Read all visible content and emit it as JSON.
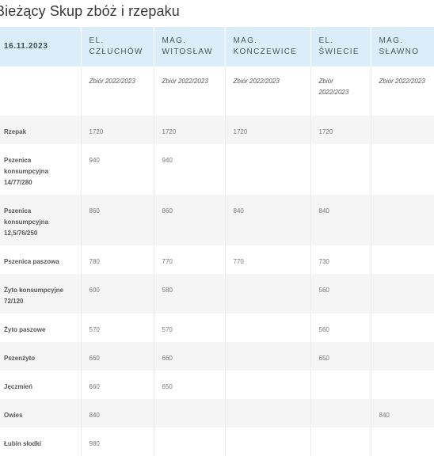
{
  "page": {
    "title": "Bieżący Skup zbóż i rzepaku"
  },
  "table": {
    "date": "16.11.2023",
    "columns": [
      "EL. CZŁUCHÓW",
      "MAG. WITOSŁAW",
      "MAG. KOŃCZEWICE",
      "EL. ŚWIECIE",
      "MAG. SŁAWNO"
    ],
    "harvest": [
      "Zbiór 2022/2023",
      "Zbiór 2022/2023",
      "Zbiór 2022/2023",
      "Zbiór 2022/2023",
      "Zbiór 2022/2023"
    ],
    "rows": [
      {
        "name": "Rzepak",
        "values": [
          "1720",
          "1720",
          "1720",
          "1720",
          ""
        ]
      },
      {
        "name": "Pszenica konsumpcyjna 14/77/280",
        "values": [
          "940",
          "940",
          "",
          "",
          ""
        ]
      },
      {
        "name": "Pszenica konsumpcyjna 12,5/76/250",
        "values": [
          "860",
          "860",
          "840",
          "840",
          ""
        ]
      },
      {
        "name": "Pszenica paszowa",
        "values": [
          "780",
          "770",
          "770",
          "730",
          ""
        ]
      },
      {
        "name": "Żyto konsumpcyjne 72/120",
        "values": [
          "600",
          "580",
          "",
          "560",
          ""
        ]
      },
      {
        "name": "Żyto paszowe",
        "values": [
          "570",
          "570",
          "",
          "560",
          ""
        ]
      },
      {
        "name": "Pszenżyto",
        "values": [
          "660",
          "660",
          "",
          "650",
          ""
        ]
      },
      {
        "name": "Jęczmień",
        "values": [
          "660",
          "650",
          "",
          "",
          ""
        ]
      },
      {
        "name": "Owies",
        "values": [
          "840",
          "",
          "",
          "",
          "840"
        ]
      },
      {
        "name": "Łubin słodki",
        "values": [
          "980",
          "",
          "",
          "",
          ""
        ]
      }
    ]
  }
}
